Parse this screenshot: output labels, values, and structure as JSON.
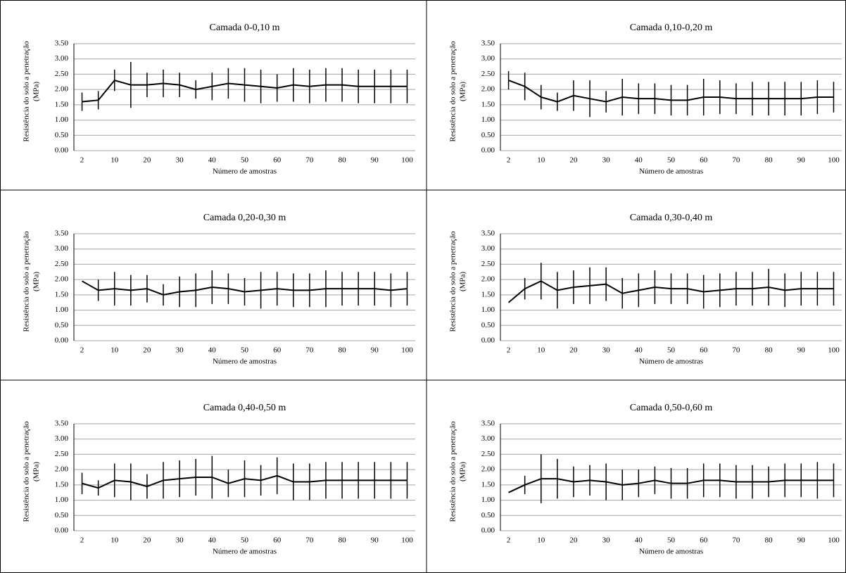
{
  "chart_data": [
    {
      "type": "line",
      "title": "Camada 0-0,10 m",
      "ylabel": [
        "Resistência do solo a penetração",
        "(MPa)"
      ],
      "xlabel": "Número de amostras",
      "categories": [
        "2",
        null,
        "10",
        null,
        "20",
        null,
        "30",
        null,
        "40",
        null,
        "50",
        null,
        "60",
        null,
        "70",
        null,
        "80",
        null,
        "90",
        null,
        "100"
      ],
      "values": [
        1.6,
        1.65,
        2.3,
        2.15,
        2.15,
        2.2,
        2.15,
        2.0,
        2.1,
        2.2,
        2.15,
        2.1,
        2.05,
        2.15,
        2.1,
        2.15,
        2.15,
        2.1,
        2.1,
        2.1,
        2.1
      ],
      "errors": [
        0.3,
        0.3,
        0.35,
        0.75,
        0.4,
        0.45,
        0.4,
        0.3,
        0.45,
        0.5,
        0.55,
        0.55,
        0.45,
        0.55,
        0.55,
        0.55,
        0.55,
        0.55,
        0.55,
        0.55,
        0.55
      ],
      "color": "#000000",
      "grid": true,
      "ylim": [
        0,
        3.5
      ],
      "yticks": [
        {
          "value": 0,
          "label": "0.00"
        },
        {
          "value": 0.5,
          "label": "0.50"
        },
        {
          "value": 1,
          "label": "1.00"
        },
        {
          "value": 1.5,
          "label": "1.50"
        },
        {
          "value": 2,
          "label": "2.00"
        },
        {
          "value": 2.5,
          "label": "2.50"
        },
        {
          "value": 3,
          "label": "3.00"
        },
        {
          "value": 3.5,
          "label": "3.50"
        }
      ]
    },
    {
      "type": "line",
      "title": "Camada 0,10-0,20 m",
      "ylabel": [
        "Resistência do solo a penetração",
        "(MPa)"
      ],
      "xlabel": "Número de amostras",
      "categories": [
        "2",
        null,
        "10",
        null,
        "20",
        null,
        "30",
        null,
        "40",
        null,
        "50",
        null,
        "60",
        null,
        "70",
        null,
        "80",
        null,
        "90",
        null,
        "100"
      ],
      "values": [
        2.3,
        2.1,
        1.75,
        1.6,
        1.8,
        1.7,
        1.6,
        1.75,
        1.7,
        1.7,
        1.65,
        1.65,
        1.75,
        1.75,
        1.7,
        1.7,
        1.7,
        1.7,
        1.7,
        1.75,
        1.75
      ],
      "errors": [
        0.3,
        0.45,
        0.4,
        0.3,
        0.5,
        0.6,
        0.35,
        0.6,
        0.5,
        0.5,
        0.5,
        0.5,
        0.6,
        0.55,
        0.5,
        0.55,
        0.55,
        0.55,
        0.55,
        0.55,
        0.5
      ],
      "color": "#000000",
      "grid": true,
      "ylim": [
        0,
        3.5
      ],
      "yticks": [
        {
          "value": 0,
          "label": "0.00"
        },
        {
          "value": 0.5,
          "label": "0.50"
        },
        {
          "value": 1,
          "label": "1.00"
        },
        {
          "value": 1.5,
          "label": "1.50"
        },
        {
          "value": 2,
          "label": "2.00"
        },
        {
          "value": 2.5,
          "label": "2.50"
        },
        {
          "value": 3,
          "label": "3.00"
        },
        {
          "value": 3.5,
          "label": "3.50"
        }
      ]
    },
    {
      "type": "line",
      "title": "Camada 0,20-0,30 m",
      "ylabel": [
        "Resistência do solo a penetração",
        "(MPa)"
      ],
      "xlabel": "Número de amostras",
      "categories": [
        "2",
        null,
        "10",
        null,
        "20",
        null,
        "30",
        null,
        "40",
        null,
        "50",
        null,
        "60",
        null,
        "70",
        null,
        "80",
        null,
        "90",
        null,
        "100"
      ],
      "values": [
        1.95,
        1.65,
        1.7,
        1.65,
        1.7,
        1.5,
        1.6,
        1.65,
        1.75,
        1.7,
        1.6,
        1.65,
        1.7,
        1.65,
        1.65,
        1.7,
        1.7,
        1.7,
        1.7,
        1.65,
        1.7
      ],
      "errors": [
        0,
        0.35,
        0.55,
        0.5,
        0.45,
        0.35,
        0.5,
        0.55,
        0.55,
        0.5,
        0.45,
        0.6,
        0.55,
        0.55,
        0.55,
        0.6,
        0.55,
        0.55,
        0.55,
        0.55,
        0.55
      ],
      "color": "#000000",
      "grid": true,
      "ylim": [
        0,
        3.5
      ],
      "yticks": [
        {
          "value": 0,
          "label": "0.00"
        },
        {
          "value": 0.5,
          "label": "0.50"
        },
        {
          "value": 1,
          "label": "1.00"
        },
        {
          "value": 1.5,
          "label": "1.50"
        },
        {
          "value": 2,
          "label": "2.00"
        },
        {
          "value": 2.5,
          "label": "2.50"
        },
        {
          "value": 3,
          "label": "3.00"
        },
        {
          "value": 3.5,
          "label": "3.50"
        }
      ]
    },
    {
      "type": "line",
      "title": "Camada 0,30-0,40 m",
      "ylabel": [
        "Resistência do solo a penetração",
        "(MPa)"
      ],
      "xlabel": "Número de amostras",
      "categories": [
        "2",
        null,
        "10",
        null,
        "20",
        null,
        "30",
        null,
        "40",
        null,
        "50",
        null,
        "60",
        null,
        "70",
        null,
        "80",
        null,
        "90",
        null,
        "100"
      ],
      "values": [
        1.25,
        1.7,
        1.95,
        1.65,
        1.75,
        1.8,
        1.85,
        1.55,
        1.65,
        1.75,
        1.7,
        1.7,
        1.6,
        1.65,
        1.7,
        1.7,
        1.75,
        1.65,
        1.7,
        1.7,
        1.7
      ],
      "errors": [
        0,
        0.35,
        0.6,
        0.6,
        0.55,
        0.6,
        0.55,
        0.5,
        0.55,
        0.55,
        0.5,
        0.5,
        0.55,
        0.55,
        0.55,
        0.55,
        0.6,
        0.55,
        0.55,
        0.55,
        0.55
      ],
      "color": "#000000",
      "grid": true,
      "ylim": [
        0,
        3.5
      ],
      "yticks": [
        {
          "value": 0,
          "label": "0.00"
        },
        {
          "value": 0.5,
          "label": "0.50"
        },
        {
          "value": 1,
          "label": "1.00"
        },
        {
          "value": 1.5,
          "label": "1.50"
        },
        {
          "value": 2,
          "label": "2.00"
        },
        {
          "value": 2.5,
          "label": "2.50"
        },
        {
          "value": 3,
          "label": "3.00"
        },
        {
          "value": 3.5,
          "label": "3.50"
        }
      ]
    },
    {
      "type": "line",
      "title": "Camada 0,40-0,50 m",
      "ylabel": [
        "Resistência do solo a penetração",
        "(MPa)"
      ],
      "xlabel": "Número de amostras",
      "categories": [
        "2",
        null,
        "10",
        null,
        "20",
        null,
        "30",
        null,
        "40",
        null,
        "50",
        null,
        "60",
        null,
        "70",
        null,
        "80",
        null,
        "90",
        null,
        "100"
      ],
      "values": [
        1.55,
        1.4,
        1.65,
        1.6,
        1.45,
        1.65,
        1.7,
        1.75,
        1.75,
        1.55,
        1.7,
        1.65,
        1.8,
        1.6,
        1.6,
        1.65,
        1.65,
        1.65,
        1.65,
        1.65,
        1.65
      ],
      "errors": [
        0.35,
        0.25,
        0.55,
        0.6,
        0.4,
        0.6,
        0.6,
        0.6,
        0.7,
        0.45,
        0.6,
        0.5,
        0.6,
        0.6,
        0.6,
        0.6,
        0.6,
        0.6,
        0.6,
        0.6,
        0.6
      ],
      "color": "#000000",
      "grid": true,
      "ylim": [
        0,
        3.5
      ],
      "yticks": [
        {
          "value": 0,
          "label": "0.00"
        },
        {
          "value": 0.5,
          "label": "0.50"
        },
        {
          "value": 1,
          "label": "1.00"
        },
        {
          "value": 1.5,
          "label": "1.50"
        },
        {
          "value": 2,
          "label": "2.00"
        },
        {
          "value": 2.5,
          "label": "2.50"
        },
        {
          "value": 3,
          "label": "3.00"
        },
        {
          "value": 3.5,
          "label": "3.50"
        }
      ]
    },
    {
      "type": "line",
      "title": "Camada 0,50-0,60 m",
      "ylabel": [
        "Resistência do solo a penetração",
        "(MPa)"
      ],
      "xlabel": "Número de amostras",
      "categories": [
        "2",
        null,
        "10",
        null,
        "20",
        null,
        "30",
        null,
        "40",
        null,
        "50",
        null,
        "60",
        null,
        "70",
        null,
        "80",
        null,
        "90",
        null,
        "100"
      ],
      "values": [
        1.25,
        1.5,
        1.7,
        1.7,
        1.6,
        1.65,
        1.6,
        1.5,
        1.55,
        1.65,
        1.55,
        1.55,
        1.65,
        1.65,
        1.6,
        1.6,
        1.6,
        1.65,
        1.65,
        1.65,
        1.65
      ],
      "errors": [
        0,
        0.3,
        0.8,
        0.65,
        0.5,
        0.5,
        0.6,
        0.5,
        0.45,
        0.45,
        0.5,
        0.5,
        0.55,
        0.55,
        0.55,
        0.55,
        0.5,
        0.55,
        0.55,
        0.6,
        0.55
      ],
      "color": "#000000",
      "grid": true,
      "ylim": [
        0,
        3.5
      ],
      "yticks": [
        {
          "value": 0,
          "label": "0.00"
        },
        {
          "value": 0.5,
          "label": "0.50"
        },
        {
          "value": 1,
          "label": "1.00"
        },
        {
          "value": 1.5,
          "label": "1.50"
        },
        {
          "value": 2,
          "label": "2.00"
        },
        {
          "value": 2.5,
          "label": "2.50"
        },
        {
          "value": 3,
          "label": "3.00"
        },
        {
          "value": 3.5,
          "label": "3.50"
        }
      ]
    }
  ]
}
